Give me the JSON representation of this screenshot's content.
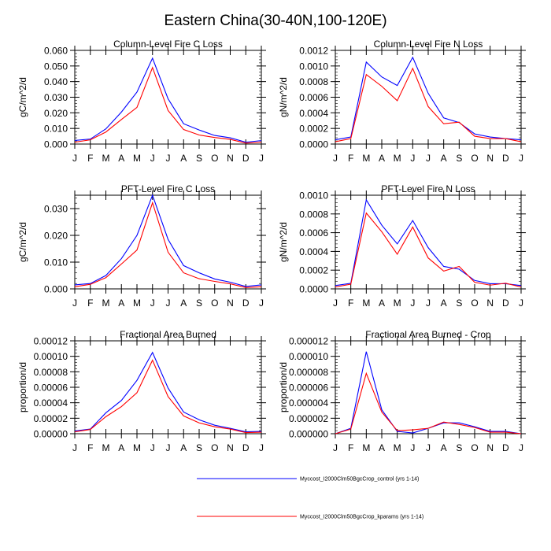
{
  "figure": {
    "title": "Eastern China(30-40N,100-120E)"
  },
  "legend": {
    "position": "bottom-center",
    "entries": [
      {
        "name": "Myccost_I2000Clm50BgcCrop_control (yrs 1-14)",
        "color": "#0000ff"
      },
      {
        "name": "Myccost_I2000Clm50BgcCrop_kparams (yrs 1-14)",
        "color": "#ff0000"
      }
    ]
  },
  "chart_data": [
    {
      "type": "line",
      "title": "Column-Level Fire C Loss",
      "xlabel": "",
      "ylabel": "gC/m^2/d",
      "categories": [
        "J",
        "F",
        "M",
        "A",
        "M",
        "J",
        "J",
        "A",
        "S",
        "O",
        "N",
        "D",
        "J"
      ],
      "ylim": [
        0,
        0.06
      ],
      "yticks": [
        0,
        0.01,
        0.02,
        0.03,
        0.04,
        0.05,
        0.06
      ],
      "ytick_labels": [
        "0.000",
        "0.010",
        "0.020",
        "0.030",
        "0.040",
        "0.050",
        "0.060"
      ],
      "series": [
        {
          "name": "Myccost_I2000Clm50BgcCrop_control (yrs 1-14)",
          "color": "#0000ff",
          "values": [
            0.0023,
            0.0032,
            0.0097,
            0.0205,
            0.0333,
            0.055,
            0.029,
            0.013,
            0.009,
            0.0055,
            0.004,
            0.0012,
            0.0022
          ]
        },
        {
          "name": "Myccost_I2000Clm50BgcCrop_kparams (yrs 1-14)",
          "color": "#ff0000",
          "values": [
            0.0012,
            0.0027,
            0.0077,
            0.0157,
            0.0235,
            0.049,
            0.0215,
            0.0093,
            0.0058,
            0.0042,
            0.003,
            0.0006,
            0.0012
          ]
        }
      ]
    },
    {
      "type": "line",
      "title": "Column-Level Fire N Loss",
      "xlabel": "",
      "ylabel": "gN/m^2/d",
      "categories": [
        "J",
        "F",
        "M",
        "A",
        "M",
        "J",
        "J",
        "A",
        "S",
        "O",
        "N",
        "D",
        "J"
      ],
      "ylim": [
        0,
        0.0012
      ],
      "yticks": [
        0,
        0.0002,
        0.0004,
        0.0006,
        0.0008,
        0.001,
        0.0012
      ],
      "ytick_labels": [
        "0.0000",
        "0.0002",
        "0.0004",
        "0.0006",
        "0.0008",
        "0.0010",
        "0.0012"
      ],
      "series": [
        {
          "name": "Myccost_I2000Clm50BgcCrop_control (yrs 1-14)",
          "color": "#0000ff",
          "values": [
            5.5e-05,
            9e-05,
            0.00105,
            0.00086,
            0.00075,
            0.00111,
            0.00065,
            0.000335,
            0.000275,
            0.00013,
            9e-05,
            7e-05,
            5.5e-05
          ]
        },
        {
          "name": "Myccost_I2000Clm50BgcCrop_kparams (yrs 1-14)",
          "color": "#ff0000",
          "values": [
            3e-05,
            7e-05,
            0.00089,
            0.00074,
            0.000555,
            0.00097,
            0.00048,
            0.00026,
            0.00028,
            0.0001,
            7e-05,
            7e-05,
            3e-05
          ]
        }
      ]
    },
    {
      "type": "line",
      "title": "PFT-Level Fire C Loss",
      "xlabel": "",
      "ylabel": "gC/m^2/d",
      "categories": [
        "J",
        "F",
        "M",
        "A",
        "M",
        "J",
        "J",
        "A",
        "S",
        "O",
        "N",
        "D",
        "J"
      ],
      "ylim": [
        0,
        0.035
      ],
      "yticks": [
        0,
        0.01,
        0.02,
        0.03
      ],
      "ytick_labels": [
        "0.000",
        "0.010",
        "0.020",
        "0.030"
      ],
      "series": [
        {
          "name": "Myccost_I2000Clm50BgcCrop_control (yrs 1-14)",
          "color": "#0000ff",
          "values": [
            0.0015,
            0.002,
            0.005,
            0.0113,
            0.02,
            0.035,
            0.0185,
            0.0087,
            0.006,
            0.0037,
            0.0025,
            0.0009,
            0.0015
          ]
        },
        {
          "name": "Myccost_I2000Clm50BgcCrop_kparams (yrs 1-14)",
          "color": "#ff0000",
          "values": [
            0.0008,
            0.0017,
            0.0042,
            0.0093,
            0.0145,
            0.0322,
            0.0137,
            0.006,
            0.0038,
            0.0028,
            0.0019,
            0.0005,
            0.0008
          ]
        }
      ]
    },
    {
      "type": "line",
      "title": "PFT-Level Fire N Loss",
      "xlabel": "",
      "ylabel": "gN/m^2/d",
      "categories": [
        "J",
        "F",
        "M",
        "A",
        "M",
        "J",
        "J",
        "A",
        "S",
        "O",
        "N",
        "D",
        "J"
      ],
      "ylim": [
        0,
        0.001
      ],
      "yticks": [
        0,
        0.0002,
        0.0004,
        0.0006,
        0.0008,
        0.001
      ],
      "ytick_labels": [
        "0.0000",
        "0.0002",
        "0.0004",
        "0.0006",
        "0.0008",
        "0.0010"
      ],
      "series": [
        {
          "name": "Myccost_I2000Clm50BgcCrop_control (yrs 1-14)",
          "color": "#0000ff",
          "values": [
            3.5e-05,
            6e-05,
            0.00095,
            0.00068,
            0.00048,
            0.00073,
            0.00044,
            0.00024,
            0.00021,
            9e-05,
            5.5e-05,
            5.5e-05,
            3.5e-05
          ]
        },
        {
          "name": "Myccost_I2000Clm50BgcCrop_kparams (yrs 1-14)",
          "color": "#ff0000",
          "values": [
            2e-05,
            5e-05,
            0.00081,
            0.00061,
            0.00037,
            0.00066,
            0.00033,
            0.00019,
            0.00024,
            7e-05,
            4e-05,
            6e-05,
            2e-05
          ]
        }
      ]
    },
    {
      "type": "line",
      "title": "Fractional Area Burned",
      "xlabel": "",
      "ylabel": "proportion/d",
      "categories": [
        "J",
        "F",
        "M",
        "A",
        "M",
        "J",
        "J",
        "A",
        "S",
        "O",
        "N",
        "D",
        "J"
      ],
      "ylim": [
        0,
        0.00012
      ],
      "yticks": [
        0,
        2e-05,
        4e-05,
        6e-05,
        8e-05,
        0.0001,
        0.00012
      ],
      "ytick_labels": [
        "0.00000",
        "0.00002",
        "0.00004",
        "0.00006",
        "0.00008",
        "0.00010",
        "0.00012"
      ],
      "series": [
        {
          "name": "Myccost_I2000Clm50BgcCrop_control (yrs 1-14)",
          "color": "#0000ff",
          "values": [
            3.5e-06,
            6e-06,
            2.7e-05,
            4.3e-05,
            6.9e-05,
            0.000105,
            5.9e-05,
            2.8e-05,
            1.8e-05,
            1.1e-05,
            7e-06,
            2.5e-06,
            3e-06
          ]
        },
        {
          "name": "Myccost_I2000Clm50BgcCrop_kparams (yrs 1-14)",
          "color": "#ff0000",
          "values": [
            2.5e-06,
            5.5e-06,
            2.2e-05,
            3.5e-05,
            5.3e-05,
            9.5e-05,
            4.8e-05,
            2.3e-05,
            1.4e-05,
            9e-06,
            6e-06,
            1.5e-06,
            2e-06
          ]
        }
      ]
    },
    {
      "type": "line",
      "title": "Fractional Area Burned - Crop",
      "xlabel": "",
      "ylabel": "proportion/d",
      "categories": [
        "J",
        "F",
        "M",
        "A",
        "M",
        "J",
        "J",
        "A",
        "S",
        "O",
        "N",
        "D",
        "J"
      ],
      "ylim": [
        0,
        1.2e-05
      ],
      "yticks": [
        0,
        2e-06,
        4e-06,
        6e-06,
        8e-06,
        1e-05,
        1.2e-05
      ],
      "ytick_labels": [
        "0.000000",
        "0.000002",
        "0.000004",
        "0.000006",
        "0.000008",
        "0.000010",
        "0.000012"
      ],
      "series": [
        {
          "name": "Myccost_I2000Clm50BgcCrop_control (yrs 1-14)",
          "color": "#0000ff",
          "values": [
            0.0,
            7e-07,
            1.06e-05,
            3.1e-06,
            3e-07,
            1e-07,
            7e-07,
            1.4e-06,
            1.4e-06,
            9e-07,
            3e-07,
            3e-07,
            0.0
          ]
        },
        {
          "name": "Myccost_I2000Clm50BgcCrop_kparams (yrs 1-14)",
          "color": "#ff0000",
          "values": [
            0.0,
            6e-07,
            7.8e-06,
            2.8e-06,
            4e-07,
            5e-07,
            7e-07,
            1.5e-06,
            1.2e-06,
            8e-07,
            2e-07,
            2e-07,
            0.0
          ]
        }
      ]
    }
  ]
}
